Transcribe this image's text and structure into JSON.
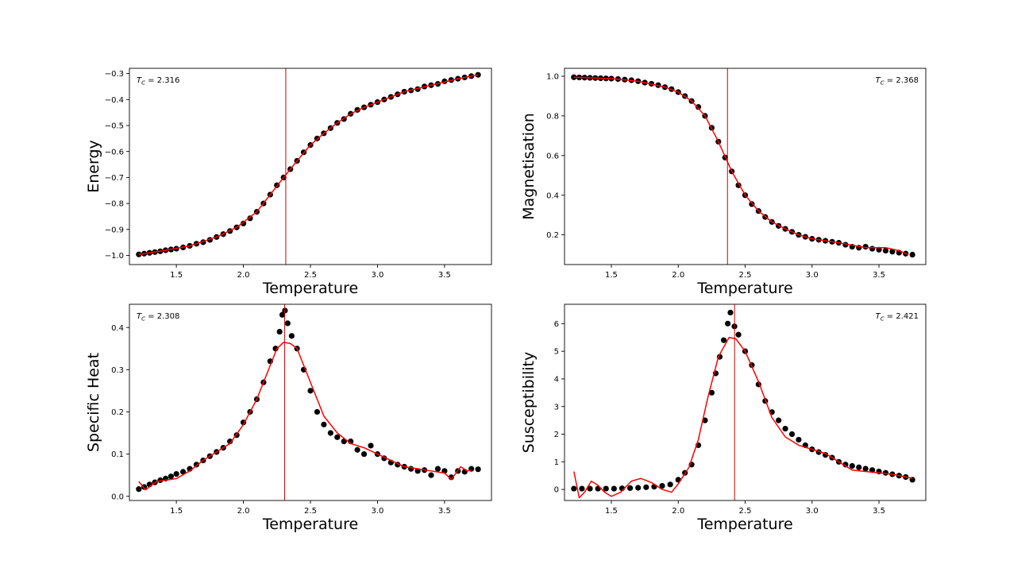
{
  "chart_data": [
    {
      "type": "scatter",
      "xlabel": "Temperature",
      "ylabel": "Energy",
      "xlim": [
        1.15,
        3.85
      ],
      "ylim": [
        -1.035,
        -0.28
      ],
      "xticks": [
        1.5,
        2.0,
        2.5,
        3.0,
        3.5
      ],
      "yticks": [
        -1.0,
        -0.9,
        -0.8,
        -0.7,
        -0.6,
        -0.5,
        -0.4,
        -0.3
      ],
      "tick_decimals": 1,
      "tc_value": 2.316,
      "tc_label_prefix": "T",
      "tc_label_sub": "C",
      "tc_label_suffix": " = 2.316",
      "tc_position": "top-left",
      "scatter_color": "#000000",
      "fit_color": "#ff0000",
      "vline_color": "#cc0000",
      "points": [
        [
          1.22,
          -0.996
        ],
        [
          1.26,
          -0.993
        ],
        [
          1.3,
          -0.99
        ],
        [
          1.34,
          -0.987
        ],
        [
          1.38,
          -0.984
        ],
        [
          1.42,
          -0.98
        ],
        [
          1.46,
          -0.977
        ],
        [
          1.5,
          -0.974
        ],
        [
          1.55,
          -0.969
        ],
        [
          1.6,
          -0.963
        ],
        [
          1.65,
          -0.955
        ],
        [
          1.7,
          -0.949
        ],
        [
          1.75,
          -0.94
        ],
        [
          1.8,
          -0.929
        ],
        [
          1.85,
          -0.918
        ],
        [
          1.9,
          -0.906
        ],
        [
          1.95,
          -0.892
        ],
        [
          2.0,
          -0.877
        ],
        [
          2.05,
          -0.857
        ],
        [
          2.1,
          -0.832
        ],
        [
          2.15,
          -0.8
        ],
        [
          2.2,
          -0.766
        ],
        [
          2.25,
          -0.73
        ],
        [
          2.3,
          -0.7
        ],
        [
          2.35,
          -0.668
        ],
        [
          2.4,
          -0.636
        ],
        [
          2.45,
          -0.603
        ],
        [
          2.5,
          -0.575
        ],
        [
          2.55,
          -0.55
        ],
        [
          2.6,
          -0.53
        ],
        [
          2.65,
          -0.51
        ],
        [
          2.7,
          -0.49
        ],
        [
          2.75,
          -0.475
        ],
        [
          2.8,
          -0.455
        ],
        [
          2.85,
          -0.44
        ],
        [
          2.9,
          -0.43
        ],
        [
          2.95,
          -0.42
        ],
        [
          3.0,
          -0.41
        ],
        [
          3.05,
          -0.4
        ],
        [
          3.1,
          -0.39
        ],
        [
          3.15,
          -0.38
        ],
        [
          3.2,
          -0.37
        ],
        [
          3.25,
          -0.365
        ],
        [
          3.3,
          -0.36
        ],
        [
          3.35,
          -0.35
        ],
        [
          3.4,
          -0.345
        ],
        [
          3.45,
          -0.34
        ],
        [
          3.5,
          -0.33
        ],
        [
          3.55,
          -0.325
        ],
        [
          3.6,
          -0.32
        ],
        [
          3.65,
          -0.315
        ],
        [
          3.7,
          -0.31
        ],
        [
          3.75,
          -0.305
        ]
      ],
      "fit": [
        [
          1.22,
          -0.996
        ],
        [
          1.4,
          -0.982
        ],
        [
          1.6,
          -0.963
        ],
        [
          1.8,
          -0.929
        ],
        [
          1.95,
          -0.892
        ],
        [
          2.1,
          -0.832
        ],
        [
          2.2,
          -0.766
        ],
        [
          2.3,
          -0.7
        ],
        [
          2.4,
          -0.636
        ],
        [
          2.5,
          -0.575
        ],
        [
          2.6,
          -0.53
        ],
        [
          2.7,
          -0.49
        ],
        [
          2.8,
          -0.455
        ],
        [
          2.9,
          -0.43
        ],
        [
          3.0,
          -0.41
        ],
        [
          3.2,
          -0.37
        ],
        [
          3.4,
          -0.345
        ],
        [
          3.6,
          -0.32
        ],
        [
          3.75,
          -0.305
        ]
      ]
    },
    {
      "type": "scatter",
      "xlabel": "Temperature",
      "ylabel": "Magnetisation",
      "xlim": [
        1.15,
        3.85
      ],
      "ylim": [
        0.05,
        1.04
      ],
      "xticks": [
        1.5,
        2.0,
        2.5,
        3.0,
        3.5
      ],
      "yticks": [
        0.2,
        0.4,
        0.6,
        0.8,
        1.0
      ],
      "tick_decimals": 1,
      "tc_value": 2.368,
      "tc_label_prefix": "T",
      "tc_label_sub": "C",
      "tc_label_suffix": " = 2.368",
      "tc_position": "top-right",
      "scatter_color": "#000000",
      "fit_color": "#ff0000",
      "vline_color": "#cc0000",
      "points": [
        [
          1.22,
          0.995
        ],
        [
          1.26,
          0.994
        ],
        [
          1.3,
          0.993
        ],
        [
          1.34,
          0.992
        ],
        [
          1.38,
          0.991
        ],
        [
          1.42,
          0.99
        ],
        [
          1.46,
          0.989
        ],
        [
          1.5,
          0.988
        ],
        [
          1.55,
          0.986
        ],
        [
          1.6,
          0.983
        ],
        [
          1.65,
          0.98
        ],
        [
          1.7,
          0.975
        ],
        [
          1.75,
          0.968
        ],
        [
          1.8,
          0.962
        ],
        [
          1.85,
          0.955
        ],
        [
          1.9,
          0.945
        ],
        [
          1.95,
          0.935
        ],
        [
          2.0,
          0.92
        ],
        [
          2.05,
          0.9
        ],
        [
          2.1,
          0.875
        ],
        [
          2.15,
          0.845
        ],
        [
          2.2,
          0.8
        ],
        [
          2.25,
          0.74
        ],
        [
          2.3,
          0.67
        ],
        [
          2.35,
          0.59
        ],
        [
          2.4,
          0.52
        ],
        [
          2.45,
          0.45
        ],
        [
          2.5,
          0.4
        ],
        [
          2.55,
          0.355
        ],
        [
          2.6,
          0.32
        ],
        [
          2.65,
          0.29
        ],
        [
          2.7,
          0.265
        ],
        [
          2.75,
          0.245
        ],
        [
          2.8,
          0.23
        ],
        [
          2.85,
          0.215
        ],
        [
          2.9,
          0.2
        ],
        [
          2.95,
          0.19
        ],
        [
          3.0,
          0.18
        ],
        [
          3.05,
          0.175
        ],
        [
          3.1,
          0.17
        ],
        [
          3.15,
          0.165
        ],
        [
          3.2,
          0.16
        ],
        [
          3.25,
          0.15
        ],
        [
          3.3,
          0.14
        ],
        [
          3.35,
          0.135
        ],
        [
          3.4,
          0.14
        ],
        [
          3.45,
          0.13
        ],
        [
          3.5,
          0.125
        ],
        [
          3.55,
          0.12
        ],
        [
          3.6,
          0.115
        ],
        [
          3.65,
          0.11
        ],
        [
          3.7,
          0.105
        ],
        [
          3.75,
          0.1
        ]
      ],
      "fit": [
        [
          1.22,
          0.995
        ],
        [
          1.5,
          0.988
        ],
        [
          1.7,
          0.975
        ],
        [
          1.9,
          0.945
        ],
        [
          2.0,
          0.92
        ],
        [
          2.1,
          0.875
        ],
        [
          2.2,
          0.8
        ],
        [
          2.3,
          0.67
        ],
        [
          2.4,
          0.52
        ],
        [
          2.5,
          0.4
        ],
        [
          2.6,
          0.32
        ],
        [
          2.7,
          0.265
        ],
        [
          2.8,
          0.23
        ],
        [
          2.9,
          0.2
        ],
        [
          3.0,
          0.18
        ],
        [
          3.2,
          0.16
        ],
        [
          3.4,
          0.135
        ],
        [
          3.55,
          0.135
        ],
        [
          3.65,
          0.12
        ],
        [
          3.72,
          0.1
        ]
      ]
    },
    {
      "type": "scatter",
      "xlabel": "Temperature",
      "ylabel": "Specific Heat",
      "xlim": [
        1.15,
        3.85
      ],
      "ylim": [
        -0.01,
        0.455
      ],
      "xticks": [
        1.5,
        2.0,
        2.5,
        3.0,
        3.5
      ],
      "yticks": [
        0.0,
        0.1,
        0.2,
        0.3,
        0.4
      ],
      "tick_decimals": 1,
      "tc_value": 2.308,
      "tc_label_prefix": "T",
      "tc_label_sub": "C",
      "tc_label_suffix": " = 2.308",
      "tc_position": "top-left",
      "scatter_color": "#000000",
      "fit_color": "#ff0000",
      "vline_color": "#cc0000",
      "points": [
        [
          1.22,
          0.017
        ],
        [
          1.26,
          0.022
        ],
        [
          1.3,
          0.028
        ],
        [
          1.34,
          0.033
        ],
        [
          1.38,
          0.038
        ],
        [
          1.42,
          0.042
        ],
        [
          1.46,
          0.047
        ],
        [
          1.5,
          0.053
        ],
        [
          1.55,
          0.058
        ],
        [
          1.6,
          0.065
        ],
        [
          1.65,
          0.075
        ],
        [
          1.7,
          0.085
        ],
        [
          1.75,
          0.095
        ],
        [
          1.8,
          0.105
        ],
        [
          1.85,
          0.115
        ],
        [
          1.9,
          0.13
        ],
        [
          1.95,
          0.145
        ],
        [
          2.0,
          0.175
        ],
        [
          2.05,
          0.2
        ],
        [
          2.1,
          0.23
        ],
        [
          2.15,
          0.27
        ],
        [
          2.2,
          0.32
        ],
        [
          2.24,
          0.35
        ],
        [
          2.27,
          0.39
        ],
        [
          2.29,
          0.43
        ],
        [
          2.31,
          0.44
        ],
        [
          2.33,
          0.41
        ],
        [
          2.36,
          0.38
        ],
        [
          2.4,
          0.35
        ],
        [
          2.45,
          0.3
        ],
        [
          2.5,
          0.25
        ],
        [
          2.55,
          0.2
        ],
        [
          2.6,
          0.17
        ],
        [
          2.65,
          0.15
        ],
        [
          2.7,
          0.14
        ],
        [
          2.75,
          0.13
        ],
        [
          2.8,
          0.13
        ],
        [
          2.85,
          0.11
        ],
        [
          2.9,
          0.1
        ],
        [
          2.95,
          0.12
        ],
        [
          3.0,
          0.1
        ],
        [
          3.05,
          0.09
        ],
        [
          3.1,
          0.08
        ],
        [
          3.15,
          0.075
        ],
        [
          3.2,
          0.07
        ],
        [
          3.25,
          0.065
        ],
        [
          3.3,
          0.06
        ],
        [
          3.35,
          0.062
        ],
        [
          3.4,
          0.05
        ],
        [
          3.45,
          0.065
        ],
        [
          3.5,
          0.06
        ],
        [
          3.55,
          0.045
        ],
        [
          3.6,
          0.06
        ],
        [
          3.65,
          0.058
        ],
        [
          3.7,
          0.065
        ],
        [
          3.75,
          0.064
        ]
      ],
      "fit": [
        [
          1.22,
          0.035
        ],
        [
          1.27,
          0.015
        ],
        [
          1.35,
          0.035
        ],
        [
          1.5,
          0.042
        ],
        [
          1.6,
          0.06
        ],
        [
          1.7,
          0.085
        ],
        [
          1.8,
          0.105
        ],
        [
          1.9,
          0.125
        ],
        [
          2.0,
          0.17
        ],
        [
          2.1,
          0.23
        ],
        [
          2.2,
          0.31
        ],
        [
          2.25,
          0.35
        ],
        [
          2.3,
          0.365
        ],
        [
          2.35,
          0.362
        ],
        [
          2.4,
          0.35
        ],
        [
          2.5,
          0.27
        ],
        [
          2.6,
          0.19
        ],
        [
          2.7,
          0.15
        ],
        [
          2.8,
          0.125
        ],
        [
          2.9,
          0.115
        ],
        [
          3.0,
          0.1
        ],
        [
          3.1,
          0.085
        ],
        [
          3.2,
          0.07
        ],
        [
          3.3,
          0.065
        ],
        [
          3.4,
          0.06
        ],
        [
          3.5,
          0.055
        ],
        [
          3.55,
          0.04
        ],
        [
          3.62,
          0.07
        ],
        [
          3.67,
          0.06
        ],
        [
          3.7,
          0.062
        ]
      ]
    },
    {
      "type": "scatter",
      "xlabel": "Temperature",
      "ylabel": "Susceptibility",
      "xlim": [
        1.15,
        3.85
      ],
      "ylim": [
        -0.4,
        6.7
      ],
      "xticks": [
        1.5,
        2.0,
        2.5,
        3.0,
        3.5
      ],
      "yticks": [
        0,
        1,
        2,
        3,
        4,
        5,
        6
      ],
      "tick_decimals": 0,
      "tc_value": 2.421,
      "tc_label_prefix": "T",
      "tc_label_sub": "C",
      "tc_label_suffix": " = 2.421",
      "tc_position": "top-right",
      "scatter_color": "#000000",
      "fit_color": "#ff0000",
      "vline_color": "#cc0000",
      "points": [
        [
          1.22,
          0.03
        ],
        [
          1.28,
          0.03
        ],
        [
          1.34,
          0.03
        ],
        [
          1.4,
          0.03
        ],
        [
          1.46,
          0.03
        ],
        [
          1.52,
          0.03
        ],
        [
          1.58,
          0.04
        ],
        [
          1.64,
          0.05
        ],
        [
          1.7,
          0.06
        ],
        [
          1.76,
          0.08
        ],
        [
          1.82,
          0.1
        ],
        [
          1.88,
          0.13
        ],
        [
          1.94,
          0.18
        ],
        [
          2.0,
          0.35
        ],
        [
          2.05,
          0.6
        ],
        [
          2.1,
          0.9
        ],
        [
          2.15,
          1.6
        ],
        [
          2.2,
          2.5
        ],
        [
          2.25,
          3.5
        ],
        [
          2.28,
          4.2
        ],
        [
          2.31,
          4.8
        ],
        [
          2.34,
          5.4
        ],
        [
          2.37,
          6.0
        ],
        [
          2.39,
          6.4
        ],
        [
          2.42,
          5.9
        ],
        [
          2.45,
          5.6
        ],
        [
          2.5,
          5.0
        ],
        [
          2.55,
          4.5
        ],
        [
          2.6,
          3.8
        ],
        [
          2.65,
          3.2
        ],
        [
          2.7,
          2.8
        ],
        [
          2.75,
          2.5
        ],
        [
          2.8,
          2.2
        ],
        [
          2.85,
          2.0
        ],
        [
          2.9,
          1.8
        ],
        [
          2.95,
          1.6
        ],
        [
          3.0,
          1.45
        ],
        [
          3.05,
          1.35
        ],
        [
          3.1,
          1.25
        ],
        [
          3.15,
          1.15
        ],
        [
          3.2,
          1.0
        ],
        [
          3.25,
          0.9
        ],
        [
          3.3,
          0.85
        ],
        [
          3.35,
          0.8
        ],
        [
          3.4,
          0.75
        ],
        [
          3.45,
          0.7
        ],
        [
          3.5,
          0.65
        ],
        [
          3.55,
          0.6
        ],
        [
          3.6,
          0.55
        ],
        [
          3.65,
          0.5
        ],
        [
          3.7,
          0.45
        ],
        [
          3.75,
          0.35
        ]
      ],
      "fit": [
        [
          1.22,
          0.65
        ],
        [
          1.26,
          -0.3
        ],
        [
          1.3,
          -0.1
        ],
        [
          1.35,
          0.3
        ],
        [
          1.4,
          0.15
        ],
        [
          1.45,
          -0.1
        ],
        [
          1.5,
          -0.25
        ],
        [
          1.57,
          -0.1
        ],
        [
          1.65,
          0.3
        ],
        [
          1.72,
          0.4
        ],
        [
          1.8,
          0.25
        ],
        [
          1.88,
          0.0
        ],
        [
          1.95,
          -0.1
        ],
        [
          2.0,
          0.2
        ],
        [
          2.08,
          0.8
        ],
        [
          2.15,
          1.8
        ],
        [
          2.22,
          3.3
        ],
        [
          2.3,
          4.8
        ],
        [
          2.38,
          5.5
        ],
        [
          2.43,
          5.45
        ],
        [
          2.5,
          5.0
        ],
        [
          2.6,
          3.9
        ],
        [
          2.7,
          2.6
        ],
        [
          2.8,
          1.9
        ],
        [
          2.9,
          1.6
        ],
        [
          3.0,
          1.45
        ],
        [
          3.1,
          1.3
        ],
        [
          3.2,
          1.0
        ],
        [
          3.3,
          0.7
        ],
        [
          3.4,
          0.65
        ],
        [
          3.5,
          0.6
        ],
        [
          3.6,
          0.55
        ],
        [
          3.75,
          0.4
        ]
      ]
    }
  ]
}
